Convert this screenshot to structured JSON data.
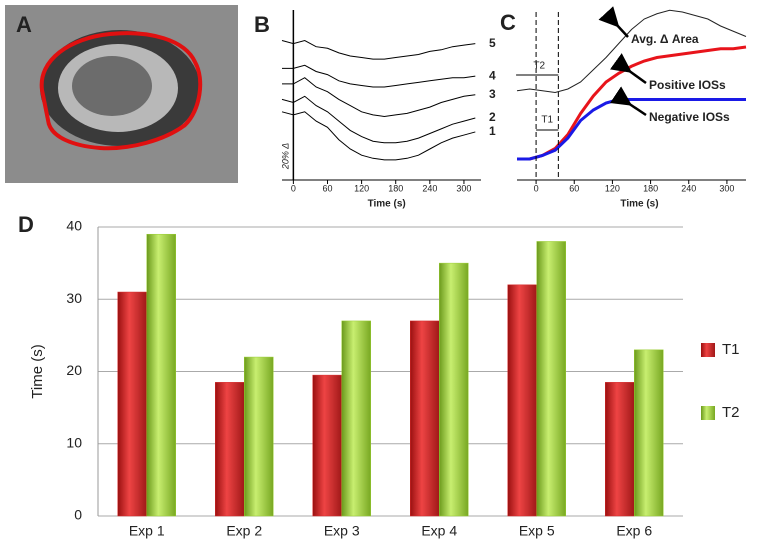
{
  "panel_labels": [
    "A",
    "B",
    "C",
    "D"
  ],
  "chart_data": [
    {
      "type": "line",
      "x_label": "Time (s)",
      "scale_label": "20% Δ",
      "x": [
        -20,
        0,
        20,
        40,
        60,
        80,
        100,
        120,
        140,
        160,
        180,
        200,
        220,
        240,
        260,
        280,
        300,
        320
      ],
      "xlim": [
        -20,
        330
      ],
      "xticks": [
        0,
        60,
        120,
        180,
        240,
        300
      ],
      "ylim": [
        0,
        100
      ],
      "series": [
        {
          "name": "5",
          "color": "#000000",
          "values": [
            90,
            88,
            90,
            86,
            85,
            82,
            80,
            79,
            78,
            78,
            79,
            80,
            81,
            83,
            84,
            86,
            87,
            88
          ]
        },
        {
          "name": "4",
          "color": "#000000",
          "values": [
            72,
            72,
            74,
            70,
            68,
            64,
            62,
            61,
            60,
            60,
            61,
            62,
            63,
            64,
            65,
            66,
            66,
            67
          ]
        },
        {
          "name": "3",
          "color": "#000000",
          "values": [
            62,
            62,
            66,
            60,
            57,
            52,
            48,
            44,
            42,
            41,
            42,
            43,
            45,
            47,
            50,
            52,
            54,
            55
          ]
        },
        {
          "name": "2",
          "color": "#000000",
          "values": [
            52,
            50,
            54,
            48,
            44,
            38,
            32,
            28,
            25,
            24,
            24,
            25,
            27,
            30,
            33,
            36,
            38,
            40
          ]
        },
        {
          "name": "1",
          "color": "#000000",
          "values": [
            44,
            42,
            44,
            38,
            34,
            26,
            20,
            16,
            14,
            13,
            13,
            14,
            16,
            20,
            24,
            27,
            29,
            31
          ]
        }
      ]
    },
    {
      "type": "line",
      "x_label": "Time (s)",
      "x": [
        -30,
        -10,
        10,
        30,
        50,
        70,
        90,
        110,
        130,
        150,
        170,
        190,
        210,
        230,
        250,
        270,
        290,
        310,
        330
      ],
      "xlim": [
        -30,
        330
      ],
      "xticks": [
        0,
        60,
        120,
        180,
        240,
        300
      ],
      "ylim": [
        0,
        100
      ],
      "vlines": [
        0,
        35
      ],
      "annotations": [
        "T2",
        "T1"
      ],
      "series": [
        {
          "name": "Avg. Δ Area",
          "color": "#222222",
          "values": [
            51,
            52,
            51,
            50,
            52,
            56,
            63,
            70,
            78,
            86,
            92,
            95,
            97,
            96,
            94,
            92,
            88,
            85,
            82
          ]
        },
        {
          "name": "Positive IOSs",
          "color": "#e8141b",
          "values": [
            12,
            12,
            14,
            18,
            26,
            38,
            48,
            56,
            61,
            65,
            68,
            70,
            71,
            72,
            73,
            74,
            75,
            75,
            76
          ]
        },
        {
          "name": "Negative IOSs",
          "color": "#1a1ae6",
          "values": [
            12,
            12,
            14,
            17,
            24,
            34,
            40,
            44,
            46,
            46,
            46,
            46,
            46,
            46,
            46,
            46,
            46,
            46,
            46
          ]
        }
      ]
    },
    {
      "type": "bar",
      "y_label": "Time (s)",
      "categories": [
        "Exp 1",
        "Exp 2",
        "Exp 3",
        "Exp 4",
        "Exp 5",
        "Exp 6"
      ],
      "ylim": [
        0,
        40
      ],
      "yticks": [
        0,
        10,
        20,
        30,
        40
      ],
      "grid": true,
      "legend": "right",
      "series": [
        {
          "name": "T1",
          "color": "#d42a2a",
          "values": [
            31,
            18.5,
            19.5,
            27,
            32,
            18.5
          ]
        },
        {
          "name": "T2",
          "color": "#9acd32",
          "values": [
            39,
            22,
            27,
            35,
            38,
            23
          ]
        }
      ]
    }
  ]
}
